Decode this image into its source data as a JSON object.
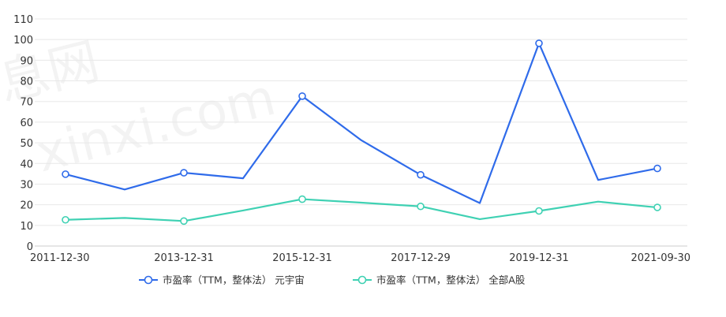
{
  "chart_data": {
    "type": "line",
    "categories": [
      "2011-12-30",
      "2012-12-31",
      "2013-12-31",
      "2014-12-31",
      "2015-12-31",
      "2016-12-30",
      "2017-12-29",
      "2018-12-28",
      "2019-12-31",
      "2020-12-31",
      "2021-09-30"
    ],
    "x_tick_labels": [
      "2011-12-30",
      "2013-12-31",
      "2015-12-31",
      "2017-12-29",
      "2019-12-31",
      "2021-09-30"
    ],
    "y_ticks": [
      0,
      10,
      20,
      30,
      40,
      50,
      60,
      70,
      80,
      90,
      100,
      110
    ],
    "ylim": [
      0,
      110
    ],
    "grid": true,
    "legend_position": "bottom-center",
    "series": [
      {
        "name": "市盈率（TTM，整体法） 元宇宙",
        "color": "#2f6bea",
        "values": [
          34.8,
          27.4,
          35.5,
          32.8,
          72.6,
          51.2,
          34.5,
          20.8,
          98.2,
          32.0,
          37.6
        ]
      },
      {
        "name": "市盈率（TTM，整体法） 全部A股",
        "color": "#3fd1b3",
        "values": [
          12.7,
          13.6,
          12.1,
          17.2,
          22.7,
          21.0,
          19.2,
          13.0,
          17.0,
          21.5,
          18.7
        ]
      }
    ]
  }
}
